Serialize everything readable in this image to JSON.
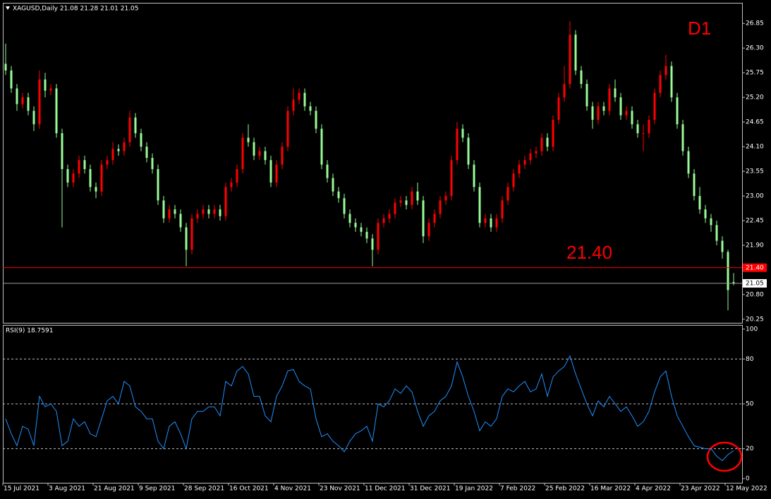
{
  "header": "XAGUSD,Daily  21.08 21.28 21.01 21.05",
  "chart_data": [
    {
      "type": "candlestick",
      "categories": [
        "15 Jul 2021",
        null,
        null,
        null,
        null,
        null,
        null,
        null,
        "3 Aug 2021",
        null,
        null,
        null,
        null,
        null,
        null,
        null,
        "21 Aug 2021",
        null,
        null,
        null,
        null,
        null,
        null,
        null,
        "9 Sep 2021",
        null,
        null,
        null,
        null,
        null,
        null,
        null,
        "28 Sep 2021",
        null,
        null,
        null,
        null,
        null,
        null,
        null,
        "16 Oct 2021",
        null,
        null,
        null,
        null,
        null,
        null,
        null,
        "4 Nov 2021",
        null,
        null,
        null,
        null,
        null,
        null,
        null,
        "23 Nov 2021",
        null,
        null,
        null,
        null,
        null,
        null,
        null,
        "11 Dec 2021",
        null,
        null,
        null,
        null,
        null,
        null,
        null,
        "31 Dec 2021",
        null,
        null,
        null,
        null,
        null,
        null,
        null,
        "19 Jan 2022",
        null,
        null,
        null,
        null,
        null,
        null,
        null,
        "7 Feb 2022",
        null,
        null,
        null,
        null,
        null,
        null,
        null,
        "25 Feb 2022",
        null,
        null,
        null,
        null,
        null,
        null,
        null,
        "16 Mar 2022",
        null,
        null,
        null,
        null,
        null,
        null,
        null,
        "4 Apr 2022",
        null,
        null,
        null,
        null,
        null,
        null,
        null,
        "23 Apr 2022",
        null,
        null,
        null,
        null,
        null,
        null,
        null,
        "12 May 2022",
        null
      ],
      "open": [
        25.95,
        25.8,
        25.4,
        25.05,
        25.2,
        24.9,
        24.6,
        25.6,
        25.35,
        25.4,
        24.4,
        23.6,
        23.3,
        23.5,
        23.8,
        23.6,
        23.2,
        23.1,
        23.7,
        23.8,
        24.05,
        24.0,
        24.2,
        24.75,
        24.4,
        24.1,
        23.85,
        23.6,
        22.9,
        22.5,
        22.7,
        22.6,
        22.3,
        21.8,
        22.5,
        22.6,
        22.7,
        22.6,
        22.7,
        22.55,
        23.2,
        23.3,
        23.6,
        24.3,
        24.2,
        23.9,
        24.0,
        23.8,
        23.3,
        23.7,
        24.1,
        24.9,
        25.15,
        25.3,
        25.0,
        24.9,
        24.5,
        23.7,
        23.4,
        23.1,
        22.95,
        22.6,
        22.4,
        22.3,
        22.2,
        22.05,
        21.8,
        22.4,
        22.5,
        22.6,
        22.85,
        22.9,
        22.8,
        23.1,
        22.9,
        22.1,
        22.4,
        22.6,
        22.9,
        23.0,
        23.8,
        24.5,
        24.3,
        23.7,
        23.2,
        22.4,
        22.5,
        22.3,
        22.5,
        22.9,
        23.2,
        23.5,
        23.7,
        23.8,
        23.95,
        24.0,
        24.3,
        24.1,
        24.7,
        25.2,
        25.5,
        26.6,
        25.8,
        25.5,
        25.0,
        24.7,
        25.0,
        24.9,
        25.4,
        25.2,
        24.8,
        24.9,
        24.6,
        24.4,
        24.4,
        24.7,
        25.3,
        25.7,
        25.9,
        25.2,
        24.6,
        24.0,
        23.5,
        23.0,
        22.7,
        22.5,
        22.35,
        22.0,
        21.75,
        21.08
      ],
      "high": [
        26.4,
        25.9,
        25.5,
        25.3,
        25.3,
        25.0,
        25.8,
        25.75,
        25.5,
        25.5,
        24.5,
        23.7,
        23.6,
        23.9,
        23.9,
        23.7,
        23.3,
        23.8,
        23.9,
        24.2,
        24.15,
        24.3,
        24.9,
        24.85,
        24.5,
        24.2,
        23.95,
        23.7,
        23.0,
        22.8,
        22.8,
        22.7,
        22.4,
        22.6,
        22.7,
        22.8,
        22.8,
        22.8,
        22.8,
        23.3,
        23.4,
        23.7,
        24.4,
        24.6,
        24.3,
        24.1,
        24.1,
        23.9,
        23.8,
        24.2,
        25.0,
        25.4,
        25.4,
        25.4,
        25.1,
        25.0,
        24.6,
        23.8,
        23.5,
        23.2,
        23.05,
        22.7,
        22.5,
        22.4,
        22.3,
        22.15,
        22.5,
        22.6,
        22.7,
        22.95,
        23.0,
        23.0,
        23.2,
        23.3,
        23.0,
        22.5,
        22.7,
        23.0,
        23.1,
        23.9,
        24.65,
        24.6,
        24.4,
        23.8,
        23.3,
        22.6,
        22.6,
        22.6,
        23.0,
        23.3,
        23.6,
        23.8,
        23.9,
        24.05,
        24.1,
        24.4,
        24.4,
        24.8,
        25.3,
        25.9,
        26.9,
        26.7,
        25.9,
        25.6,
        25.1,
        25.1,
        25.1,
        25.5,
        25.6,
        25.3,
        25.0,
        25.0,
        24.7,
        24.6,
        24.8,
        25.4,
        25.8,
        26.15,
        26.0,
        25.3,
        24.7,
        24.1,
        23.6,
        23.2,
        22.8,
        22.6,
        22.45,
        22.1,
        21.8,
        21.28
      ],
      "low": [
        25.7,
        25.3,
        24.9,
        24.95,
        24.8,
        24.45,
        24.5,
        25.2,
        25.25,
        24.3,
        22.3,
        23.2,
        23.2,
        23.4,
        23.5,
        23.1,
        22.95,
        23.0,
        23.6,
        23.7,
        23.9,
        23.9,
        24.1,
        24.3,
        24.0,
        23.75,
        23.5,
        22.8,
        22.4,
        22.4,
        22.5,
        22.2,
        21.43,
        21.7,
        22.4,
        22.5,
        22.5,
        22.5,
        22.45,
        22.45,
        23.1,
        23.2,
        23.5,
        24.1,
        23.8,
        23.8,
        23.7,
        23.2,
        23.2,
        23.6,
        24.0,
        24.8,
        25.05,
        24.9,
        24.8,
        24.4,
        23.6,
        23.3,
        23.0,
        22.85,
        22.5,
        22.3,
        22.2,
        22.1,
        21.95,
        21.43,
        21.7,
        22.3,
        22.4,
        22.5,
        22.75,
        22.7,
        22.7,
        22.8,
        21.95,
        22.0,
        22.3,
        22.5,
        22.8,
        22.9,
        23.7,
        24.2,
        23.6,
        23.1,
        22.3,
        22.3,
        22.2,
        22.2,
        22.4,
        22.8,
        23.1,
        23.4,
        23.6,
        23.7,
        23.85,
        23.9,
        24.0,
        24.0,
        24.6,
        25.1,
        25.4,
        25.7,
        25.4,
        24.9,
        24.5,
        24.6,
        24.8,
        24.8,
        25.1,
        24.7,
        24.7,
        24.5,
        24.3,
        24.0,
        24.3,
        24.6,
        25.2,
        25.6,
        25.1,
        24.5,
        23.9,
        23.4,
        22.9,
        22.6,
        22.4,
        22.2,
        21.9,
        21.6,
        20.45,
        21.01
      ],
      "close": [
        25.8,
        25.4,
        25.05,
        25.2,
        24.9,
        24.6,
        25.6,
        25.35,
        25.4,
        24.4,
        23.6,
        23.3,
        23.5,
        23.8,
        23.6,
        23.2,
        23.1,
        23.7,
        23.8,
        24.05,
        24.0,
        24.2,
        24.75,
        24.4,
        24.1,
        23.85,
        23.6,
        22.9,
        22.5,
        22.7,
        22.6,
        22.3,
        21.8,
        22.5,
        22.6,
        22.7,
        22.6,
        22.7,
        22.55,
        23.2,
        23.3,
        23.6,
        24.3,
        24.2,
        23.9,
        24.0,
        23.8,
        23.3,
        23.7,
        24.1,
        24.9,
        25.15,
        25.3,
        25.0,
        24.9,
        24.5,
        23.7,
        23.4,
        23.1,
        22.95,
        22.6,
        22.4,
        22.3,
        22.2,
        22.05,
        21.8,
        22.4,
        22.5,
        22.6,
        22.85,
        22.9,
        22.8,
        23.1,
        22.9,
        22.1,
        22.4,
        22.6,
        22.9,
        23.0,
        23.8,
        24.5,
        24.3,
        23.7,
        23.2,
        22.4,
        22.5,
        22.3,
        22.5,
        22.9,
        23.2,
        23.5,
        23.7,
        23.8,
        23.95,
        24.0,
        24.3,
        24.1,
        24.7,
        25.2,
        25.5,
        26.6,
        25.8,
        25.5,
        25.0,
        24.7,
        25.0,
        24.9,
        25.4,
        25.2,
        24.8,
        24.9,
        24.6,
        24.4,
        24.4,
        24.7,
        25.3,
        25.7,
        25.9,
        25.2,
        24.6,
        24.0,
        23.5,
        23.0,
        22.7,
        22.5,
        22.35,
        22.0,
        21.75,
        20.9,
        21.05
      ],
      "up_color": "#ff0000",
      "down_color": "#98fb98",
      "ylim": [
        20.17,
        27.31
      ],
      "yticks": [
        26.85,
        {
          "value": 26.3,
          "label": "26.30"
        },
        25.75,
        {
          "value": 25.2,
          "label": "25.20"
        },
        24.65,
        {
          "value": 24.1,
          "label": "24.10"
        },
        23.55,
        {
          "value": 23.0,
          "label": "23.00"
        },
        22.45,
        {
          "value": 21.9,
          "label": "21.90"
        },
        {
          "value": 20.8,
          "label": "20.80"
        },
        20.25
      ],
      "annotations": [
        {
          "text": "D1",
          "color": "#ff0000"
        },
        {
          "text": "21.40",
          "color": "#ff0000"
        }
      ],
      "hline": {
        "value": 21.4,
        "label": "21.40",
        "color": "#ff0000"
      },
      "price_line": {
        "value": 21.05,
        "label": "21.05",
        "color": "#a0a0a0"
      }
    },
    {
      "type": "line",
      "title": "RSI(9) 18.7591",
      "color": "#1e90ff",
      "values": [
        40,
        30,
        22,
        35,
        33,
        22,
        55,
        48,
        50,
        45,
        22,
        25,
        40,
        35,
        38,
        30,
        28,
        40,
        52,
        55,
        50,
        65,
        62,
        48,
        45,
        40,
        40,
        25,
        20,
        35,
        38,
        30,
        20,
        40,
        45,
        45,
        48,
        48,
        42,
        65,
        62,
        72,
        75,
        70,
        55,
        55,
        42,
        38,
        55,
        62,
        72,
        73,
        65,
        62,
        60,
        40,
        28,
        30,
        25,
        22,
        18,
        25,
        30,
        32,
        35,
        25,
        50,
        48,
        52,
        60,
        57,
        62,
        58,
        45,
        35,
        42,
        45,
        52,
        55,
        62,
        78,
        68,
        55,
        45,
        32,
        38,
        35,
        40,
        55,
        60,
        58,
        62,
        65,
        58,
        60,
        70,
        55,
        68,
        72,
        75,
        82,
        70,
        60,
        50,
        42,
        52,
        48,
        55,
        50,
        45,
        48,
        42,
        35,
        38,
        45,
        58,
        68,
        72,
        55,
        42,
        35,
        28,
        22,
        21,
        20,
        20,
        15,
        12,
        16,
        18.7591
      ],
      "ylim": [
        -2.8,
        102.8
      ],
      "yticks": [
        0,
        20,
        50,
        80,
        100
      ],
      "grid_levels": [
        20,
        50,
        80
      ]
    }
  ]
}
